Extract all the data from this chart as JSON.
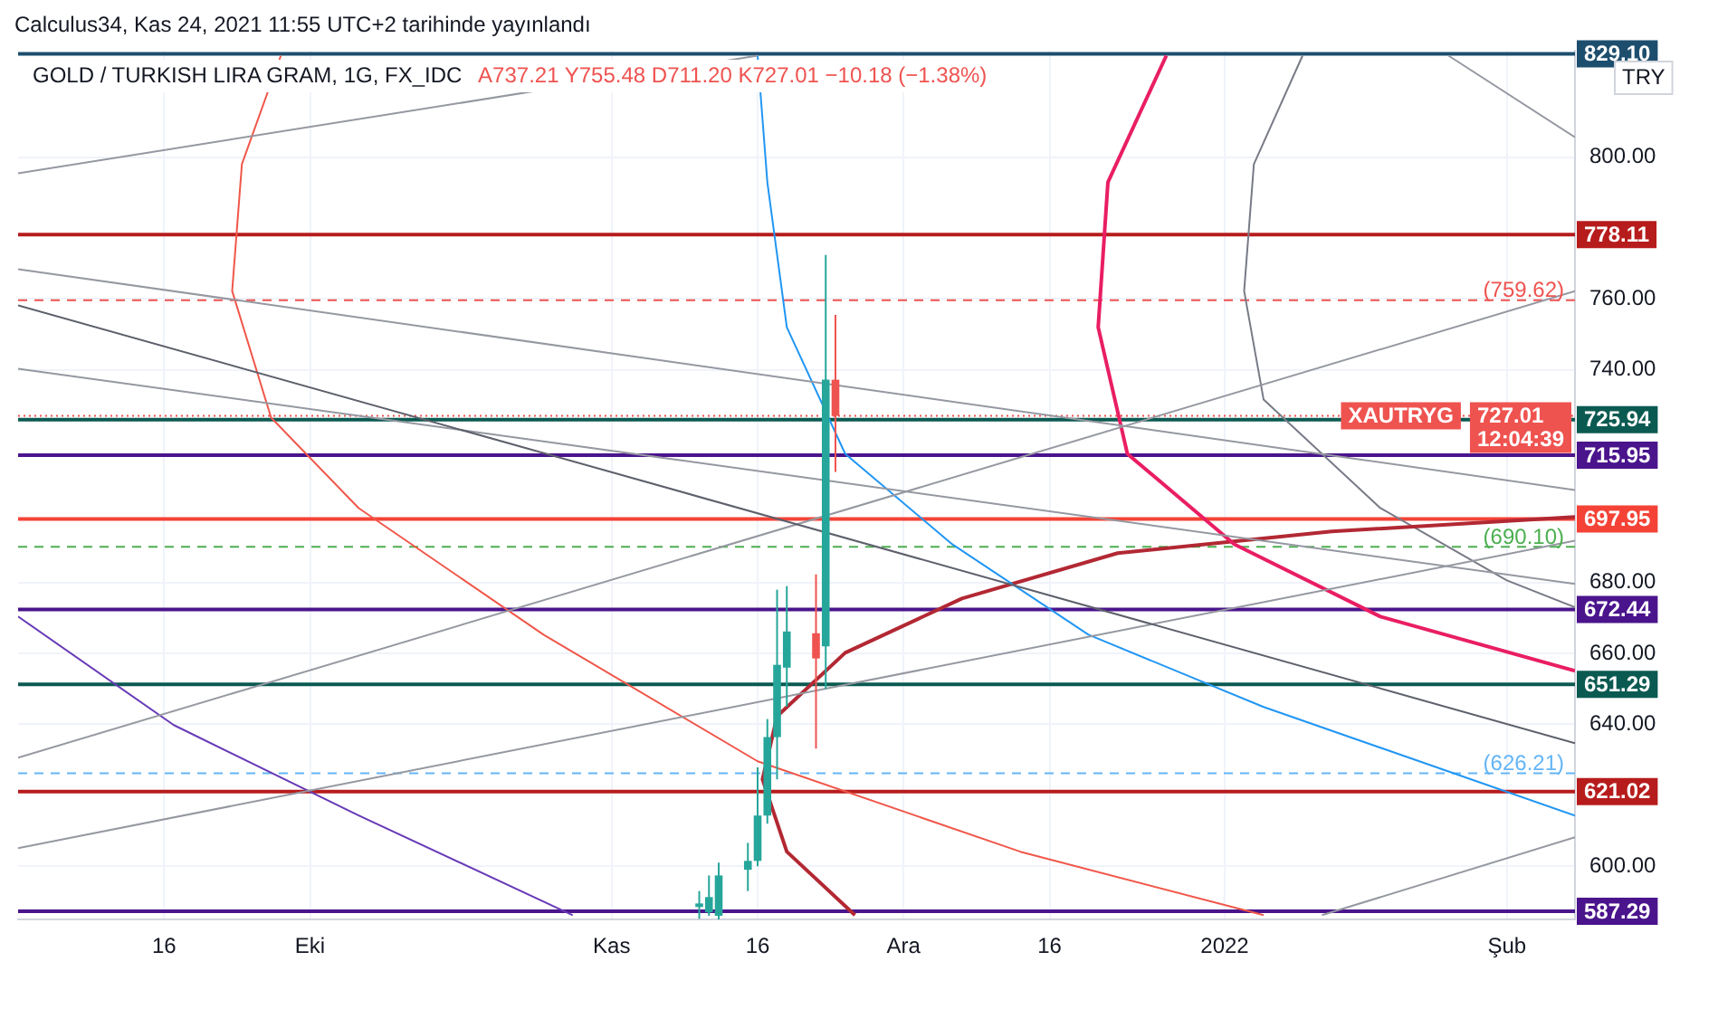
{
  "chart_data": {
    "type": "candlestick",
    "title": "GOLD / TURKISH LIRA GRAM, 1G, FX_IDC",
    "subtitle": "A737.21 Y755.48 D711.20 K727.01 −10.18 (−1.38%)",
    "x": [
      "2021-11-10",
      "2021-11-11",
      "2021-11-12",
      "2021-11-15",
      "2021-11-16",
      "2021-11-17",
      "2021-11-18",
      "2021-11-19",
      "2021-11-22",
      "2021-11-23",
      "2021-11-24"
    ],
    "ohlc": [
      [
        588.5,
        593,
        585.2,
        589.5
      ],
      [
        587,
        597.4,
        586,
        591.3
      ],
      [
        586,
        601,
        584.6,
        597.4
      ],
      [
        599,
        606.6,
        593,
        601.5
      ],
      [
        601.5,
        627.9,
        600,
        614.3
      ],
      [
        614.3,
        641.5,
        612,
        636.4
      ],
      [
        636.4,
        678,
        624.5,
        656.8
      ],
      [
        656,
        679,
        645,
        666.2
      ],
      [
        665.7,
        682.3,
        633.2,
        658.6
      ],
      [
        662,
        772.4,
        650,
        737.21
      ],
      [
        737.21,
        755.48,
        711.2,
        727.01
      ]
    ],
    "colors": [
      "#26a69a",
      "#26a69a",
      "#26a69a",
      "#26a69a",
      "#26a69a",
      "#26a69a",
      "#26a69a",
      "#26a69a",
      "#ef5350",
      "#26a69a",
      "#ef5350"
    ],
    "series": [
      {
        "type": "line",
        "color": "#5d606b",
        "x": [
          "2021-09-01",
          "2022-02-08"
        ],
        "values": [
          758.2,
          634.7
        ]
      },
      {
        "type": "line",
        "color": "#9598a1",
        "x": [
          "2021-09-01",
          "2022-02-08"
        ],
        "values": [
          768.4,
          706.1
        ]
      },
      {
        "type": "line",
        "color": "#9598a1",
        "x": [
          "2021-09-01",
          "2022-02-08"
        ],
        "values": [
          630.6,
          762.2
        ]
      },
      {
        "type": "line",
        "color": "#9598a1",
        "x": [
          "2021-09-01",
          "2022-02-08"
        ],
        "values": [
          605.1,
          691.8
        ]
      },
      {
        "type": "line",
        "color": "#9598a1",
        "x": [
          "2021-09-01",
          "2021-11-16"
        ],
        "values": [
          795.4,
          828.6
        ]
      },
      {
        "type": "line",
        "color": "#9598a1",
        "x": [
          "2021-09-01",
          "2022-02-08"
        ],
        "values": [
          740.3,
          679.6
        ]
      },
      {
        "type": "line",
        "color": "#9598a1",
        "x": [
          "2022-01-13",
          "2022-02-08"
        ],
        "values": [
          586.2,
          608.2
        ]
      },
      {
        "type": "line",
        "color": "#9598a1",
        "x": [
          "2022-01-26",
          "2022-02-08"
        ],
        "values": [
          828.6,
          805.6
        ]
      },
      {
        "type": "line",
        "color": "#f0574a",
        "x": [
          "2021-09-28",
          "2021-09-24",
          "2021-09-23",
          "2021-09-27",
          "2021-10-06",
          "2021-10-25",
          "2021-11-16",
          "2021-12-13",
          "2022-01-07"
        ],
        "values": [
          828.6,
          798,
          762.2,
          726.5,
          701,
          665.3,
          629.6,
          604.1,
          586.2
        ]
      },
      {
        "type": "line",
        "color": "#2196f3",
        "x": [
          "2021-11-16",
          "2021-11-17",
          "2021-11-19",
          "2021-11-25",
          "2021-12-06",
          "2021-12-20",
          "2022-01-07",
          "2022-02-08"
        ],
        "values": [
          828.6,
          792.9,
          752,
          716.3,
          690.8,
          665.3,
          644.9,
          614.3
        ]
      },
      {
        "type": "line",
        "color": "#e91e63",
        "x": [
          "2021-12-28",
          "2021-12-22",
          "2021-12-21",
          "2021-12-24",
          "2022-01-04",
          "2022-01-19",
          "2022-02-08"
        ],
        "values": [
          828.6,
          792.9,
          752,
          716.3,
          690.8,
          670.4,
          655.1
        ]
      },
      {
        "type": "line",
        "color": "#b22833",
        "x": [
          "2021-11-26",
          "2021-11-19",
          "2021-11-16T12:00",
          "2021-11-18",
          "2021-11-25",
          "2021-12-07",
          "2021-12-23",
          "2022-01-14",
          "2022-02-08"
        ],
        "values": [
          586.2,
          604.1,
          624.5,
          642.3,
          660.2,
          675.5,
          688.3,
          694.4,
          698.5
        ]
      },
      {
        "type": "line",
        "color": "#787b86",
        "x": [
          "2022-01-11",
          "2022-01-06",
          "2022-01-05",
          "2022-01-07",
          "2022-01-19",
          "2022-02-01",
          "2022-02-08"
        ],
        "values": [
          828.6,
          798,
          762.2,
          731.6,
          701,
          680.6,
          673
        ]
      },
      {
        "type": "line",
        "color": "#673ab7",
        "x": [
          "2021-09-01",
          "2021-09-17",
          "2021-10-06",
          "2021-10-28"
        ],
        "values": [
          670.4,
          639.8,
          614.3,
          586.2
        ]
      }
    ],
    "ref_lines": [
      {
        "axis": "y",
        "value": 829.1,
        "label": "829.10",
        "color": "#1d4e6e"
      },
      {
        "axis": "y",
        "value": 778.11,
        "label": "778.11",
        "color": "#b71c1c"
      },
      {
        "axis": "y",
        "value": 759.62,
        "label": "(759.62)",
        "color": "#ef5350",
        "line_style": "dashed"
      },
      {
        "axis": "y",
        "value": 727.01,
        "label": "727.01\n12:04:39",
        "color": "#ef5350",
        "line_style": "dotted"
      },
      {
        "axis": "y",
        "value": 725.94,
        "label": "725.94",
        "color": "#0b5a52"
      },
      {
        "axis": "y",
        "value": 715.95,
        "label": "715.95",
        "color": "#4a148c"
      },
      {
        "axis": "y",
        "value": 697.95,
        "label": "697.95",
        "color": "#f44336"
      },
      {
        "axis": "y",
        "value": 690.1,
        "label": "(690.10)",
        "color": "#4caf50",
        "line_style": "dashed"
      },
      {
        "axis": "y",
        "value": 672.44,
        "label": "672.44",
        "color": "#4a148c"
      },
      {
        "axis": "y",
        "value": 651.29,
        "label": "651.29",
        "color": "#0b5a52"
      },
      {
        "axis": "y",
        "value": 626.21,
        "label": "(626.21)",
        "color": "#64b5f6",
        "line_style": "dashed"
      },
      {
        "axis": "y",
        "value": 621.02,
        "label": "621.02",
        "color": "#b71c1c"
      },
      {
        "axis": "y",
        "value": 587.29,
        "label": "587.29",
        "color": "#4a148c"
      }
    ],
    "annotations": [
      "Calculus34, Kas 24, 2021 11:55 UTC+2 tarihinde yayınlandı",
      "TRY",
      {
        "text": "XAUTRYG",
        "y": 727.01
      }
    ],
    "xlim": [
      "2021-09-01",
      "2022-02-08"
    ],
    "xticks": [
      {
        "value": "2021-09-16",
        "label": "16"
      },
      {
        "value": "2021-10-01",
        "label": "Eki"
      },
      {
        "value": "2021-11-01",
        "label": "Kas"
      },
      {
        "value": "2021-11-16",
        "label": "16"
      },
      {
        "value": "2021-12-01",
        "label": "Ara"
      },
      {
        "value": "2021-12-16",
        "label": "16"
      },
      {
        "value": "2022-01-03",
        "label": "2022"
      },
      {
        "value": "2022-02-01",
        "label": "Şub"
      }
    ],
    "ylim": [
      585,
      830
    ],
    "yticks": [
      {
        "value": 600,
        "label": "600.00"
      },
      {
        "value": 640,
        "label": "640.00"
      },
      {
        "value": 660,
        "label": "660.00"
      },
      {
        "value": 680,
        "label": "680.00"
      },
      {
        "value": 740,
        "label": "740.00"
      },
      {
        "value": 760,
        "label": "760.00"
      },
      {
        "value": 800,
        "label": "800.00"
      }
    ],
    "grid": true,
    "legend": false
  }
}
